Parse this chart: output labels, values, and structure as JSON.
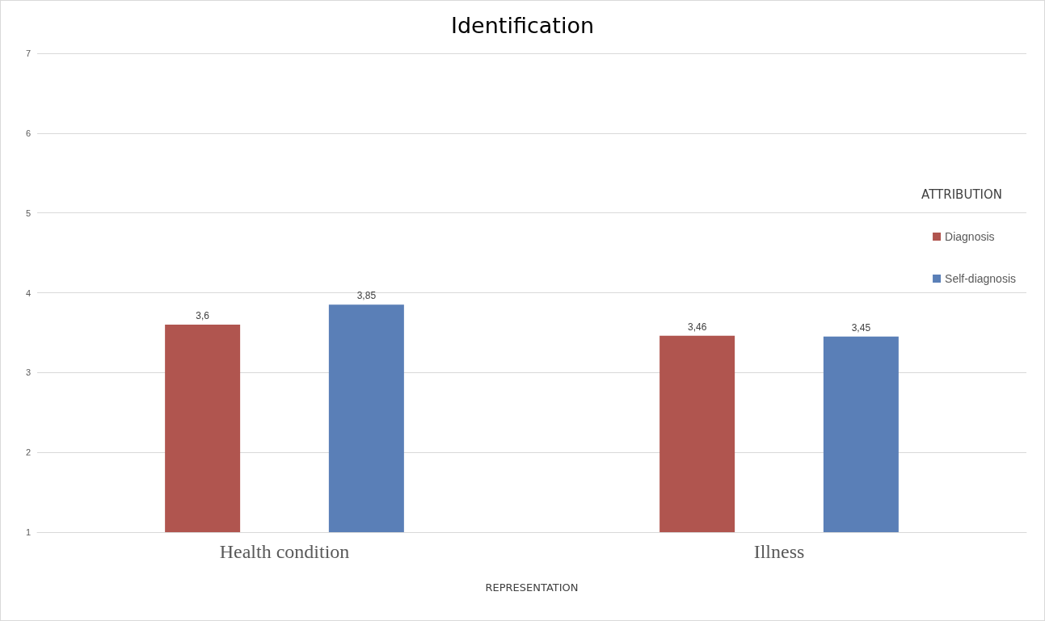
{
  "chart_data": {
    "type": "bar",
    "title": "Identification",
    "xlabel": "REPRESENTATION",
    "legend_title": "ATTRIBUTION",
    "categories": [
      "Health condition",
      "Illness"
    ],
    "series": [
      {
        "name": "Diagnosis",
        "color": "#b0554f",
        "values": [
          3.6,
          3.46
        ],
        "value_labels": [
          "3,6",
          "3,46"
        ]
      },
      {
        "name": "Self-diagnosis",
        "color": "#5a7fb7",
        "values": [
          3.85,
          3.45
        ],
        "value_labels": [
          "3,85",
          "3,45"
        ]
      }
    ],
    "ylim": [
      1,
      7
    ],
    "yticks": [
      1,
      2,
      3,
      4,
      5,
      6,
      7
    ],
    "grid": "y",
    "legend": "right"
  }
}
